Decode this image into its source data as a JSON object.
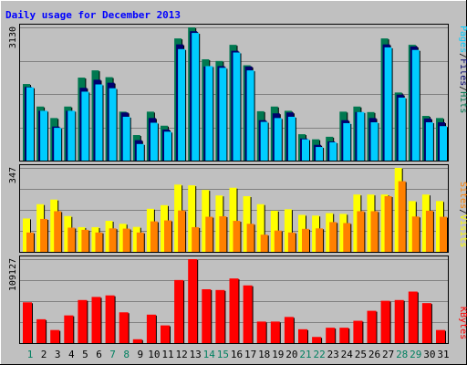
{
  "title": "Daily usage for December 2013",
  "colors": {
    "background": "#c0c0c0",
    "grid": "#808080",
    "title": "#0000ff",
    "hits": "#007850",
    "files": "#00006e",
    "pages": "#00ccff",
    "visits": "#ffff00",
    "sites": "#ff8000",
    "kbytes": "#ff0000",
    "weekday_label": "#000000",
    "weekend_label": "#008060"
  },
  "axis_labels": {
    "hits_max": "3130",
    "visits_max": "347",
    "kbytes_max": "109127"
  },
  "legend": {
    "pages": "Pages",
    "files": "Files",
    "hits": "Hits",
    "sep": "/",
    "visits": "Visits",
    "sites": "Sites",
    "kbytes": "KBytes"
  },
  "chart_data": [
    {
      "type": "bar",
      "name": "hits-files-pages",
      "categories": [
        "1",
        "2",
        "3",
        "4",
        "5",
        "6",
        "7",
        "8",
        "9",
        "10",
        "11",
        "12",
        "13",
        "14",
        "15",
        "16",
        "17",
        "18",
        "19",
        "20",
        "21",
        "22",
        "23",
        "24",
        "25",
        "26",
        "27",
        "28",
        "29",
        "30",
        "31"
      ],
      "weekend_days": [
        1,
        7,
        8,
        14,
        15,
        21,
        22,
        28,
        29
      ],
      "ylim": [
        0,
        3130
      ],
      "series": [
        {
          "name": "Hits",
          "values": [
            1800,
            1270,
            1000,
            1270,
            1950,
            2120,
            1960,
            1150,
            600,
            1150,
            820,
            2870,
            3130,
            2380,
            2340,
            2720,
            2240,
            1160,
            1270,
            1170,
            620,
            500,
            560,
            1150,
            1270,
            1140,
            2870,
            1600,
            2720,
            1050,
            1000
          ]
        },
        {
          "name": "Files",
          "values": [
            1730,
            1170,
            800,
            1170,
            1710,
            1900,
            1830,
            1130,
            480,
            1000,
            730,
            2730,
            3040,
            2210,
            2220,
            2580,
            2210,
            950,
            1110,
            1130,
            520,
            370,
            450,
            950,
            1140,
            1000,
            2730,
            1550,
            2680,
            990,
            900
          ]
        },
        {
          "name": "Pages",
          "values": [
            1720,
            1170,
            770,
            1170,
            1620,
            1790,
            1700,
            1030,
            390,
            890,
            680,
            2620,
            3000,
            2220,
            2180,
            2540,
            2120,
            910,
            1000,
            1030,
            500,
            320,
            430,
            880,
            1140,
            900,
            2660,
            1480,
            2600,
            900,
            810
          ]
        }
      ]
    },
    {
      "type": "bar",
      "name": "visits-sites",
      "categories": [
        "1",
        "2",
        "3",
        "4",
        "5",
        "6",
        "7",
        "8",
        "9",
        "10",
        "11",
        "12",
        "13",
        "14",
        "15",
        "16",
        "17",
        "18",
        "19",
        "20",
        "21",
        "22",
        "23",
        "24",
        "25",
        "26",
        "27",
        "28",
        "29",
        "30",
        "31"
      ],
      "ylim": [
        0,
        347
      ],
      "series": [
        {
          "name": "Visits",
          "values": [
            138,
            197,
            216,
            148,
            102,
            102,
            128,
            116,
            103,
            178,
            193,
            278,
            275,
            256,
            233,
            265,
            230,
            197,
            170,
            176,
            153,
            150,
            160,
            157,
            237,
            237,
            237,
            347,
            210,
            237,
            210
          ]
        },
        {
          "name": "Sites",
          "values": [
            80,
            136,
            168,
            100,
            91,
            80,
            97,
            96,
            80,
            126,
            130,
            171,
            102,
            145,
            147,
            128,
            116,
            71,
            88,
            80,
            95,
            97,
            123,
            119,
            168,
            168,
            230,
            292,
            146,
            170,
            145
          ]
        }
      ]
    },
    {
      "type": "bar",
      "name": "kbytes",
      "categories": [
        "1",
        "2",
        "3",
        "4",
        "5",
        "6",
        "7",
        "8",
        "9",
        "10",
        "11",
        "12",
        "13",
        "14",
        "15",
        "16",
        "17",
        "18",
        "19",
        "20",
        "21",
        "22",
        "23",
        "24",
        "25",
        "26",
        "27",
        "28",
        "29",
        "30",
        "31"
      ],
      "ylim": [
        0,
        109127
      ],
      "series": [
        {
          "name": "KBytes",
          "values": [
            53000,
            31000,
            17000,
            36000,
            56000,
            60000,
            62000,
            40000,
            5000,
            37000,
            23000,
            82000,
            109127,
            70000,
            69000,
            84000,
            75000,
            28000,
            28000,
            34000,
            18000,
            8000,
            20000,
            20000,
            29000,
            42000,
            55000,
            56000,
            67000,
            52000,
            17000
          ]
        }
      ]
    }
  ]
}
